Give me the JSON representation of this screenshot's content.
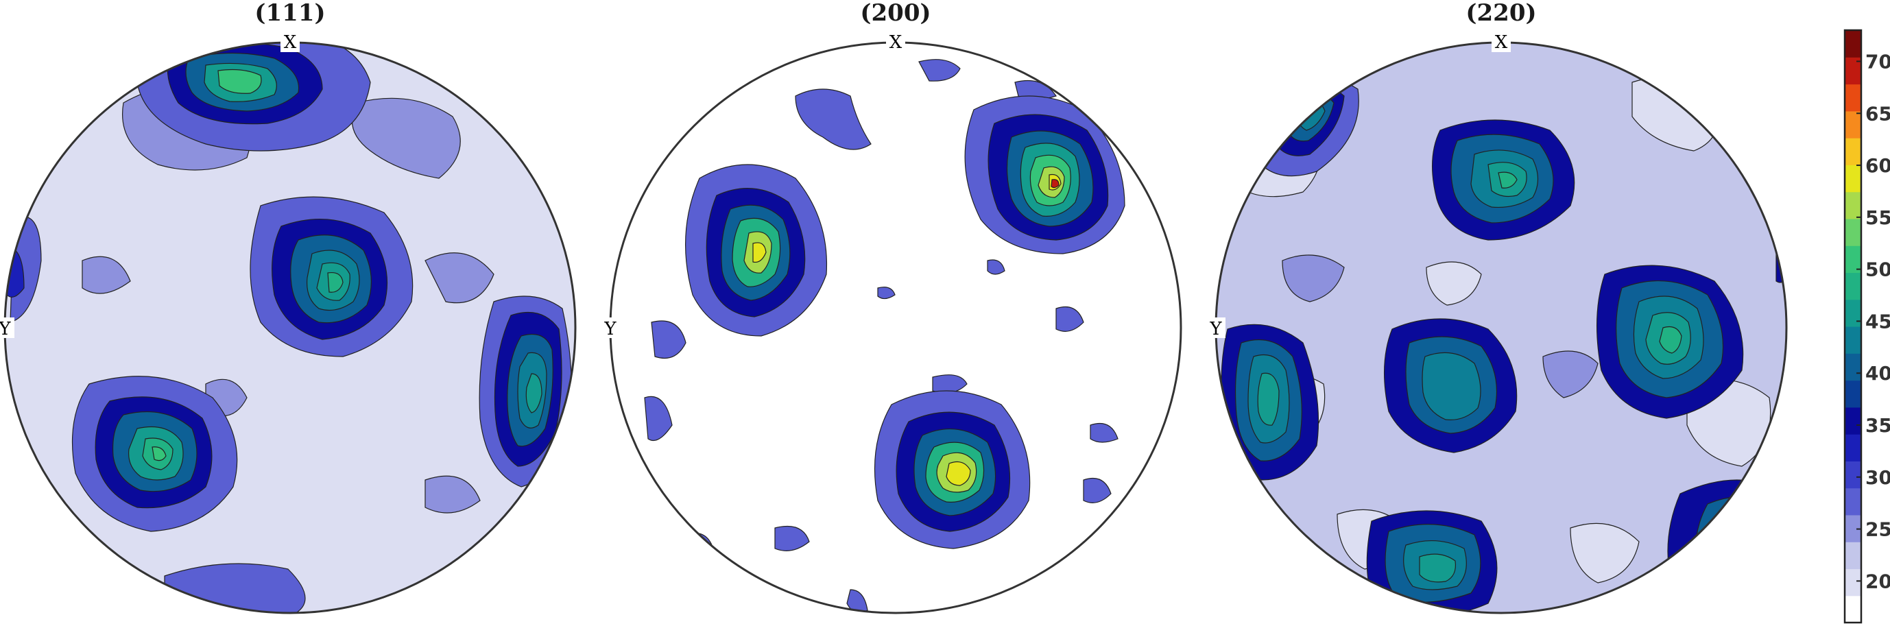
{
  "figure": {
    "panels": [
      {
        "title": "(111)",
        "x_label": "X",
        "y_label": "Y"
      },
      {
        "title": "(200)",
        "x_label": "X",
        "y_label": "Y"
      },
      {
        "title": "(220)",
        "x_label": "X",
        "y_label": "Y"
      }
    ],
    "colorbar": {
      "ticks": [
        "20",
        "25",
        "30",
        "35",
        "40",
        "45",
        "50",
        "55",
        "60",
        "65",
        "70"
      ],
      "range": [
        16,
        73
      ],
      "colors": [
        "#ffffff",
        "#dcdef2",
        "#c3c6ea",
        "#8d91dd",
        "#5a5fd2",
        "#3a3fc8",
        "#1a1fb8",
        "#0a0a9a",
        "#0a3e96",
        "#0d6096",
        "#0d7f96",
        "#149c8e",
        "#21b283",
        "#35c479",
        "#68d16a",
        "#a8da4c",
        "#e5e51c",
        "#f7c521",
        "#f68a1d",
        "#e84b12",
        "#c01a10",
        "#7a0a08"
      ]
    }
  }
}
